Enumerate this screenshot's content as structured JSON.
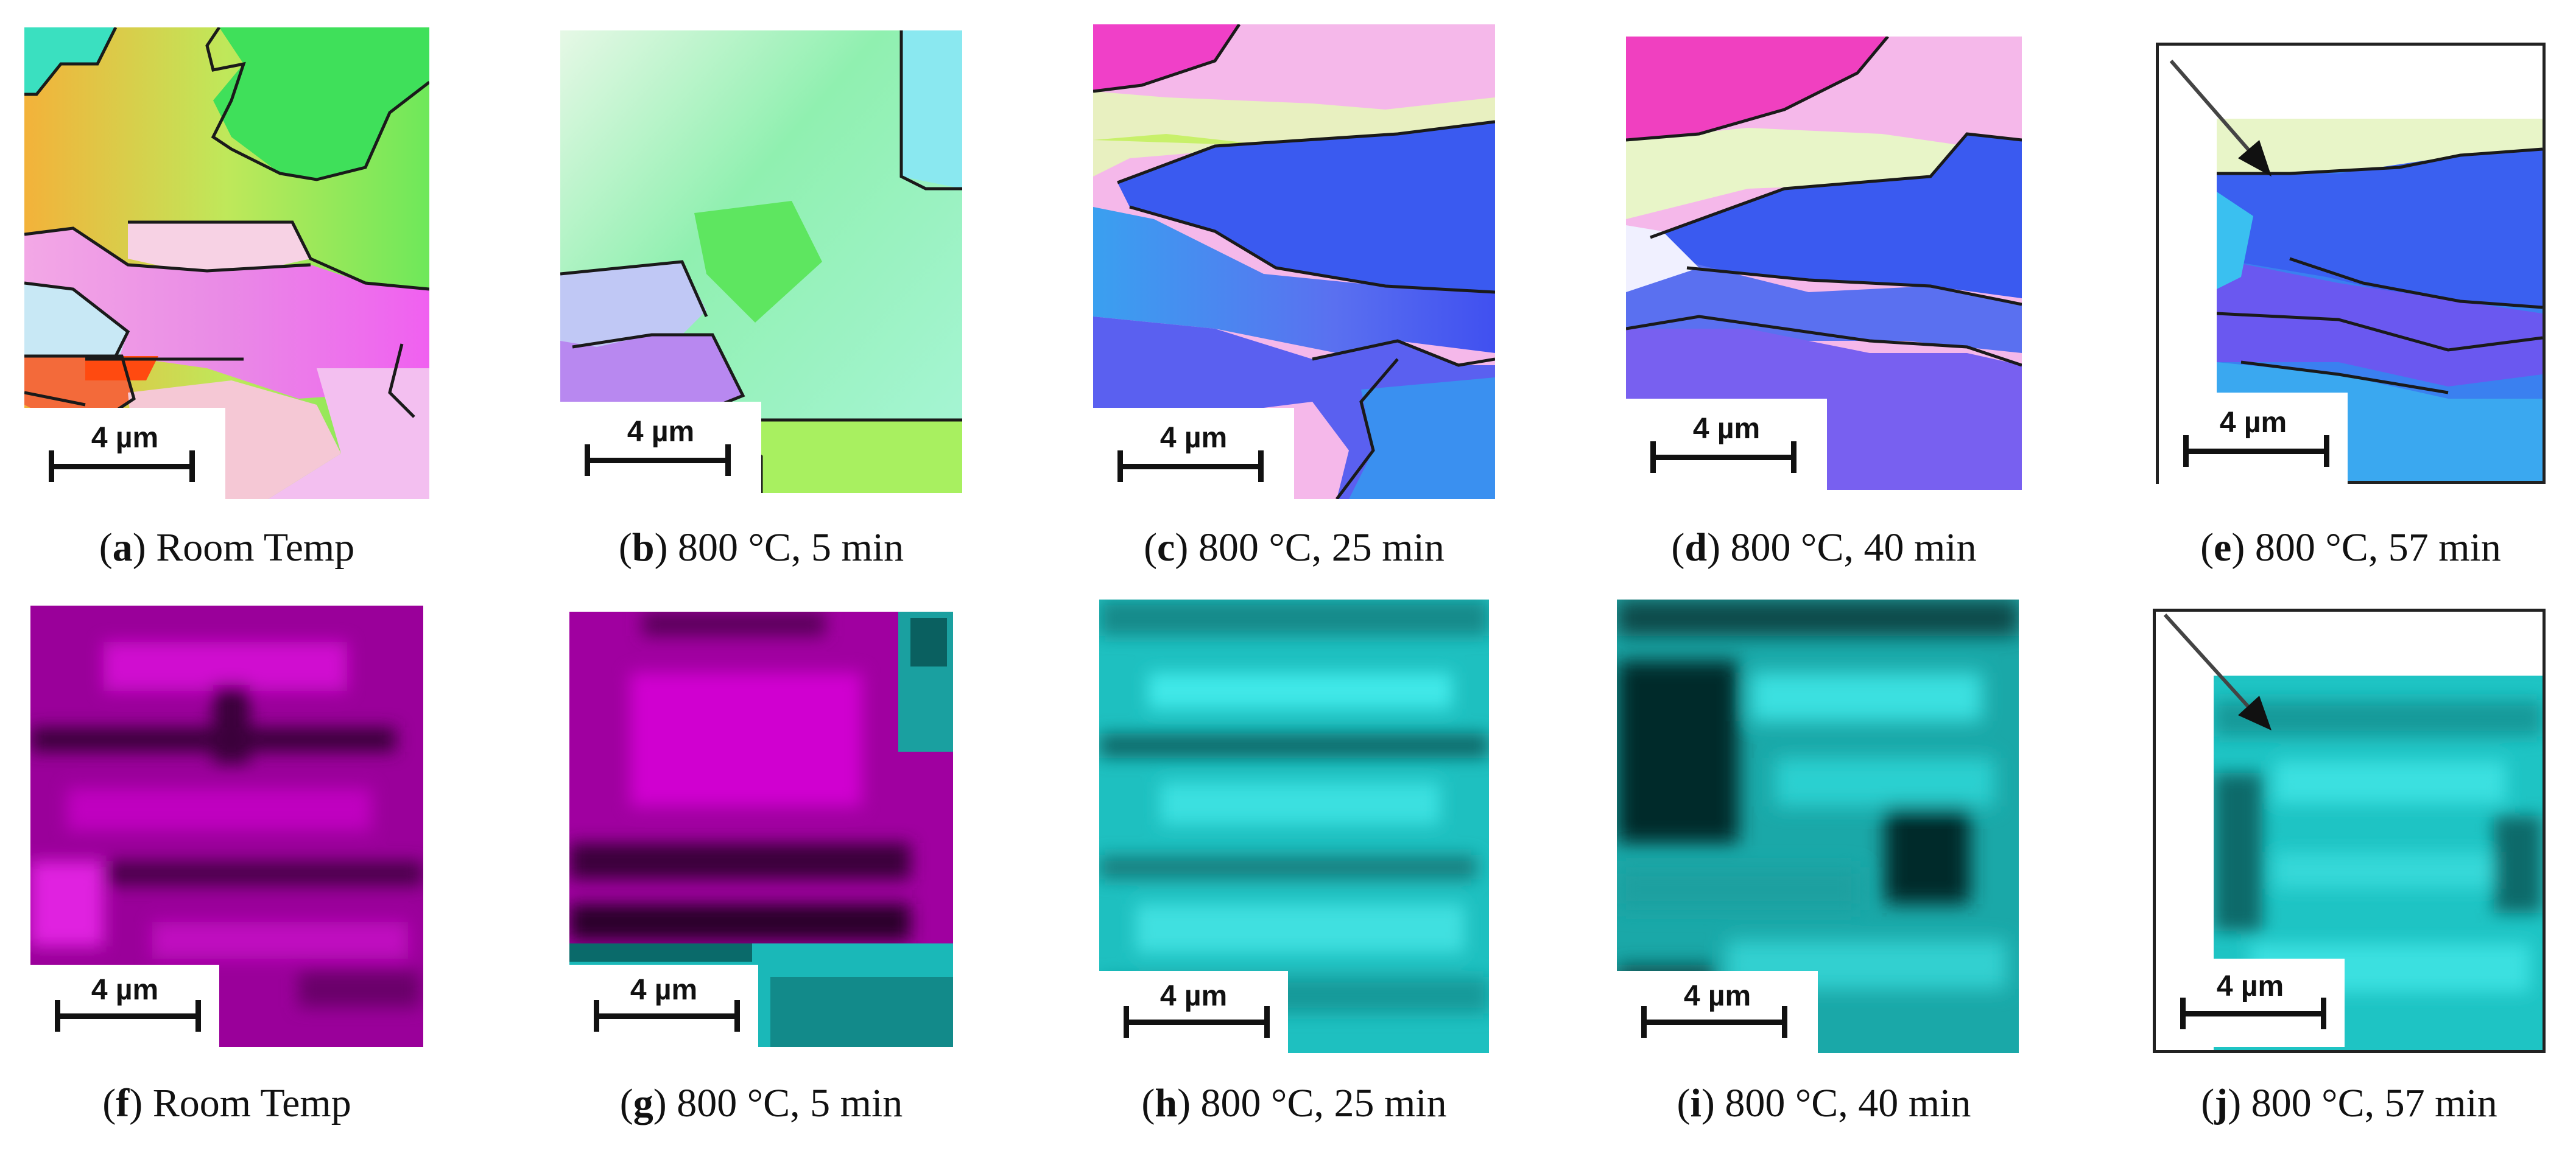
{
  "scale_label": "4 µm",
  "panels": [
    {
      "letter": "a",
      "caption": "Room Temp"
    },
    {
      "letter": "b",
      "caption": "800 °C, 5 min"
    },
    {
      "letter": "c",
      "caption": "800 °C, 25 min"
    },
    {
      "letter": "d",
      "caption": "800 °C, 40 min"
    },
    {
      "letter": "e",
      "caption": "800 °C, 57 min"
    },
    {
      "letter": "f",
      "caption": "Room Temp"
    },
    {
      "letter": "g",
      "caption": "800 °C, 5 min"
    },
    {
      "letter": "h",
      "caption": "800 °C, 25 min"
    },
    {
      "letter": "i",
      "caption": "800 °C, 40 min"
    },
    {
      "letter": "j",
      "caption": "800 °C, 57 min"
    }
  ],
  "colors": {
    "grain_boundary": "#1a1a1a",
    "ipf_green": "#5ee65e",
    "ipf_pink": "#f050e6",
    "ipf_blue": "#3a5ae8",
    "magenta_map": "#b300b3",
    "cyan_map": "#22d6d6"
  }
}
